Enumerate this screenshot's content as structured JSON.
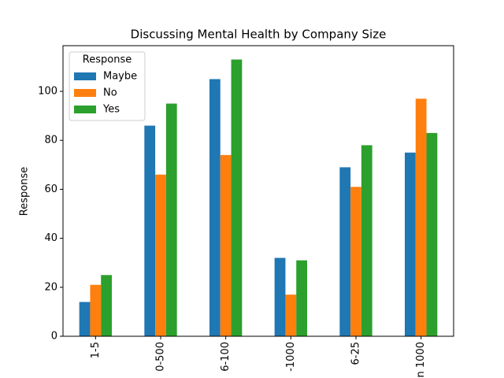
{
  "chart_data": {
    "type": "bar",
    "title": "Discussing Mental Health by Company Size",
    "y_label": "Response",
    "categories": [
      "1-5",
      "0-500",
      "6-100",
      "-1000",
      "6-25",
      "n 1000"
    ],
    "series": [
      {
        "name": "Maybe",
        "color": "#1f77b4",
        "values": [
          14,
          86,
          105,
          32,
          69,
          75
        ]
      },
      {
        "name": "No",
        "color": "#ff7f0e",
        "values": [
          21,
          66,
          74,
          17,
          61,
          97
        ]
      },
      {
        "name": "Yes",
        "color": "#2ca02c",
        "values": [
          25,
          95,
          113,
          31,
          78,
          83
        ]
      }
    ],
    "ylim": [
      0,
      118.65
    ],
    "yticks": [
      0,
      20,
      40,
      60,
      80,
      100
    ],
    "legend_title": "Response",
    "legend": "upper left",
    "grid": false
  }
}
